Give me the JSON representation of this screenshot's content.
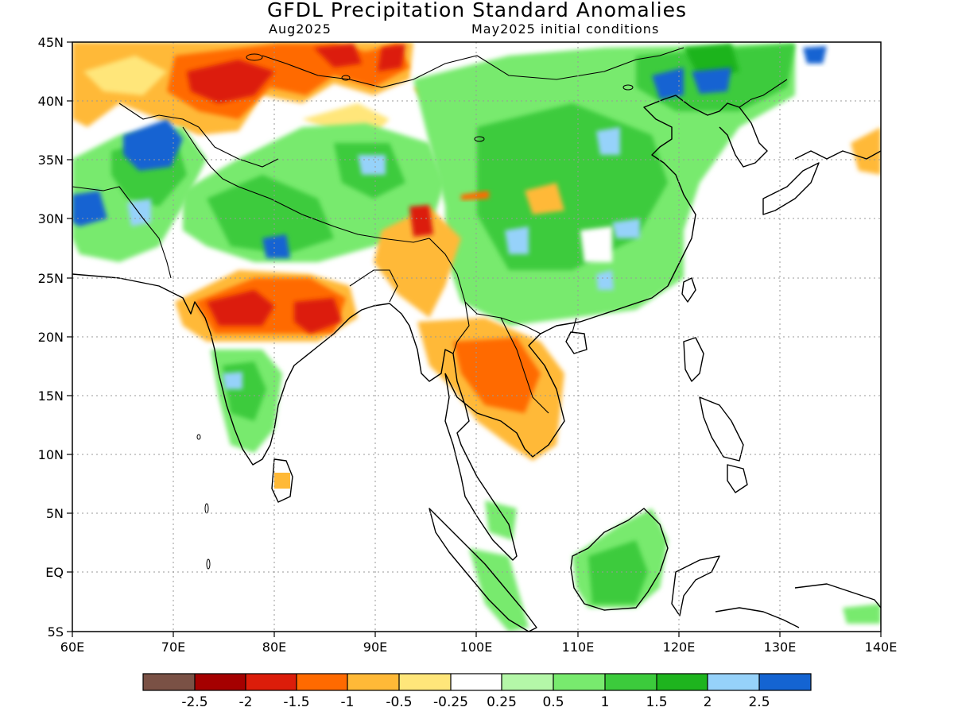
{
  "title": "GFDL Precipitation Standard Anomalies",
  "subtitle_left": "Aug2025",
  "subtitle_right": "May2025 initial conditions",
  "map": {
    "lon_range": [
      60,
      140
    ],
    "lat_range": [
      -5,
      45
    ],
    "x_ticks": [
      "60E",
      "70E",
      "80E",
      "90E",
      "100E",
      "110E",
      "120E",
      "130E",
      "140E"
    ],
    "y_ticks": [
      "45N",
      "40N",
      "35N",
      "30N",
      "25N",
      "20N",
      "15N",
      "10N",
      "5N",
      "EQ",
      "5S"
    ],
    "grid": "dotted"
  },
  "colorbar": {
    "colors": [
      "#7a5145",
      "#a50000",
      "#dc1d0a",
      "#ff6a00",
      "#ffb937",
      "#ffe67a",
      "#ffffff",
      "#b4f7a8",
      "#78ea6e",
      "#3ccb3c",
      "#1eb41e",
      "#96d2fa",
      "#1464d2"
    ],
    "labels": [
      "-2.5",
      "-2",
      "-1.5",
      "-1",
      "-0.5",
      "-0.25",
      "0.25",
      "0.5",
      "1",
      "1.5",
      "2",
      "2.5"
    ]
  }
}
